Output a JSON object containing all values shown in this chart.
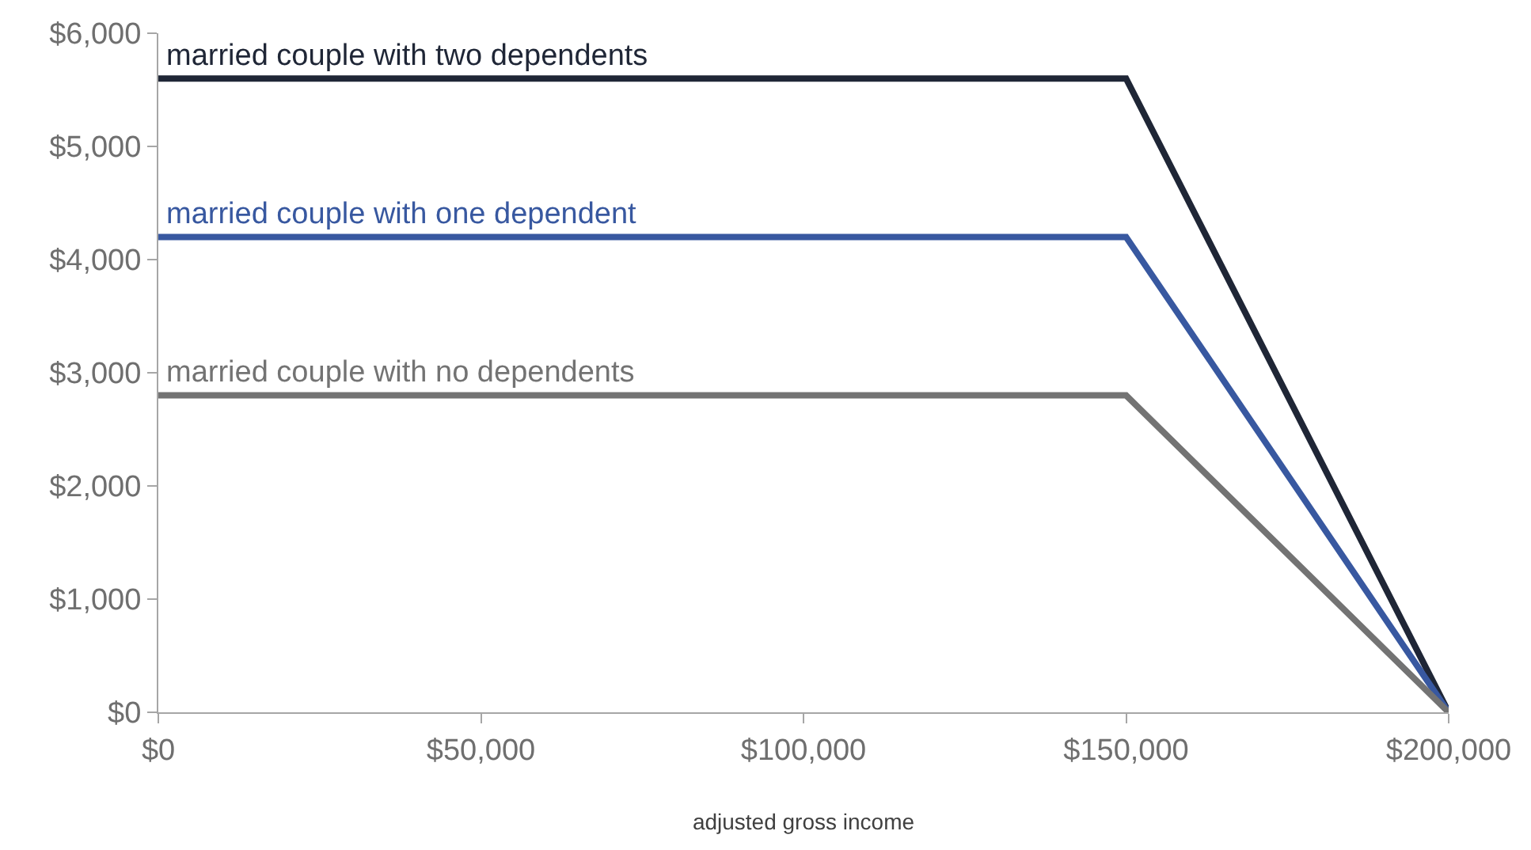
{
  "chart_data": {
    "type": "line",
    "xlabel": "adjusted gross income",
    "x": [
      0,
      150000,
      200000
    ],
    "series": [
      {
        "name": "married couple with two dependents",
        "color": "#1f2636",
        "values": [
          5600,
          5600,
          0
        ]
      },
      {
        "name": "married couple with one dependent",
        "color": "#3858a0",
        "values": [
          4200,
          4200,
          0
        ]
      },
      {
        "name": "married couple with no dependents",
        "color": "#737373",
        "values": [
          2800,
          2800,
          0
        ]
      }
    ],
    "xlim": [
      0,
      200000
    ],
    "xticks": [
      {
        "value": 0,
        "label": "$0"
      },
      {
        "value": 50000,
        "label": "$50,000"
      },
      {
        "value": 100000,
        "label": "$100,000"
      },
      {
        "value": 150000,
        "label": "$150,000"
      },
      {
        "value": 200000,
        "label": "$200,000"
      }
    ],
    "ylim": [
      0,
      6000
    ],
    "yticks": [
      {
        "value": 0,
        "label": "$0"
      },
      {
        "value": 1000,
        "label": "$1,000"
      },
      {
        "value": 2000,
        "label": "$2,000"
      },
      {
        "value": 3000,
        "label": "$3,000"
      },
      {
        "value": 4000,
        "label": "$4,000"
      },
      {
        "value": 5000,
        "label": "$5,000"
      },
      {
        "value": 6000,
        "label": "$6,000"
      }
    ],
    "grid": false,
    "legend": false,
    "marker": "none",
    "line_style": "solid"
  }
}
